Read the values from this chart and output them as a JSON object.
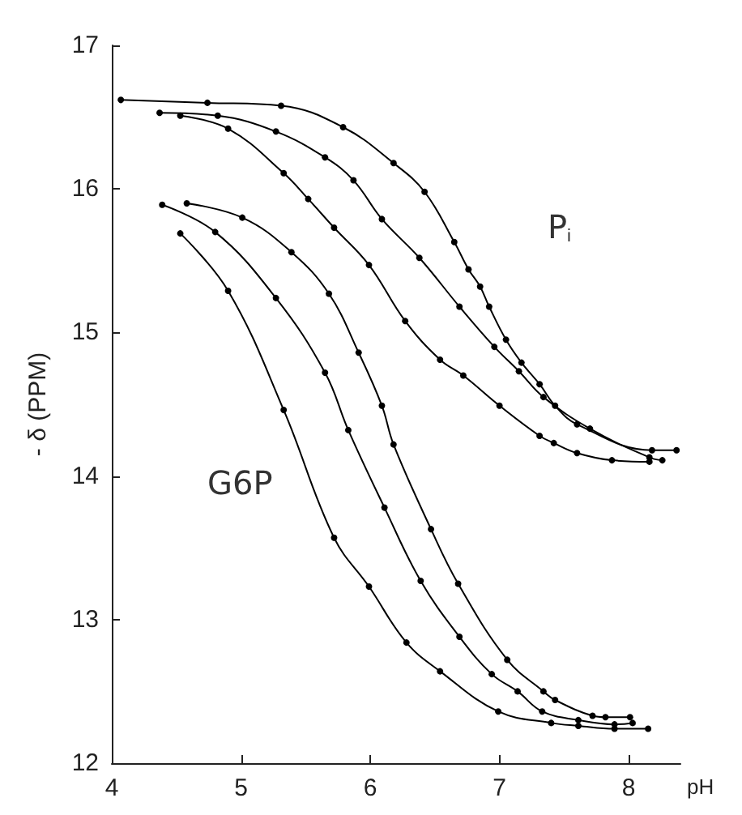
{
  "chart_data": {
    "type": "line",
    "xlabel": "pH",
    "ylabel": "- δ (PPM)",
    "xlim": [
      4,
      8.4
    ],
    "xticks": [
      4,
      5,
      6,
      7,
      8
    ],
    "ylim": [
      12,
      17
    ],
    "yticks": [
      12,
      13,
      14,
      15,
      16,
      17
    ],
    "grid": false,
    "marker": "circle",
    "line_style": "solid",
    "annotations": [
      "P$_{i}$",
      "G6P"
    ],
    "series": [
      {
        "color": "#000000",
        "x": [
          4.07,
          4.74,
          5.31,
          5.79,
          6.18,
          6.42,
          6.65,
          6.76,
          6.85,
          6.92,
          7.05,
          7.17,
          7.31,
          7.43,
          7.6,
          8.18,
          8.37
        ],
        "values": [
          16.62,
          16.6,
          16.58,
          16.43,
          16.18,
          15.98,
          15.63,
          15.44,
          15.32,
          15.18,
          14.95,
          14.79,
          14.64,
          14.49,
          14.36,
          14.18,
          14.18
        ]
      },
      {
        "color": "#000000",
        "x": [
          4.37,
          4.82,
          5.27,
          5.65,
          5.87,
          6.09,
          6.38,
          6.69,
          6.96,
          7.15,
          7.34,
          7.7,
          8.16,
          8.26
        ],
        "values": [
          16.53,
          16.51,
          16.4,
          16.22,
          16.06,
          15.79,
          15.52,
          15.18,
          14.9,
          14.73,
          14.55,
          14.33,
          14.13,
          14.11
        ]
      },
      {
        "color": "#000000",
        "x": [
          4.53,
          4.9,
          5.33,
          5.52,
          5.72,
          5.99,
          6.27,
          6.54,
          6.72,
          7.0,
          7.31,
          7.42,
          7.6,
          7.87,
          8.16
        ],
        "values": [
          16.51,
          16.42,
          16.11,
          15.93,
          15.73,
          15.47,
          15.08,
          14.81,
          14.7,
          14.49,
          14.28,
          14.23,
          14.16,
          14.11,
          14.1
        ]
      },
      {
        "color": "#000000",
        "x": [
          4.58,
          5.01,
          5.39,
          5.68,
          5.91,
          6.09,
          6.18,
          6.47,
          6.68,
          7.06,
          7.34,
          7.43,
          7.72,
          7.82,
          8.01
        ],
        "values": [
          15.9,
          15.8,
          15.56,
          15.27,
          14.86,
          14.49,
          14.22,
          13.63,
          13.25,
          12.72,
          12.5,
          12.44,
          12.33,
          12.32,
          12.32
        ]
      },
      {
        "color": "#000000",
        "x": [
          4.39,
          4.8,
          5.27,
          5.65,
          5.83,
          6.11,
          6.39,
          6.69,
          6.94,
          7.14,
          7.33,
          7.61,
          7.89,
          8.03
        ],
        "values": [
          15.89,
          15.7,
          15.24,
          14.72,
          14.32,
          13.78,
          13.27,
          12.88,
          12.62,
          12.5,
          12.36,
          12.3,
          12.27,
          12.28
        ]
      },
      {
        "color": "#000000",
        "x": [
          4.53,
          4.9,
          5.33,
          5.72,
          5.99,
          6.28,
          6.54,
          6.99,
          7.4,
          7.61,
          7.89,
          8.15
        ],
        "values": [
          15.69,
          15.29,
          14.46,
          13.57,
          13.23,
          12.84,
          12.64,
          12.36,
          12.28,
          12.26,
          12.24,
          12.24
        ]
      }
    ]
  }
}
